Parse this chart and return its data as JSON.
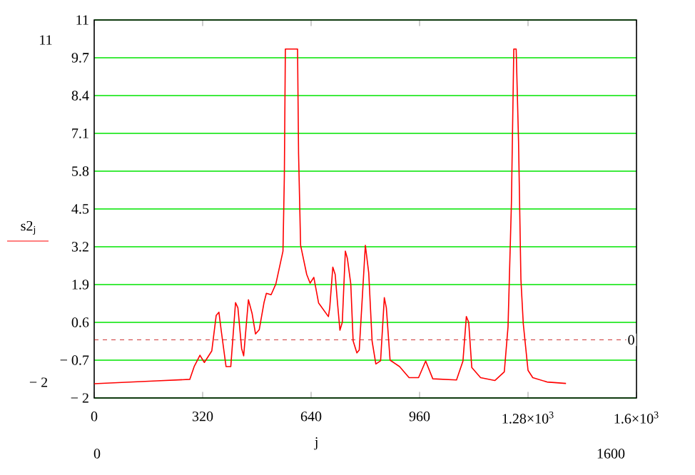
{
  "chart_data": {
    "type": "line",
    "xlabel": "j",
    "ylabel": "s2$_{j}$",
    "color": "#ff0000",
    "marker": "none",
    "line_style": "solid",
    "grid": "y",
    "xlim": [
      0,
      1600
    ],
    "ylim": [
      -2,
      11
    ],
    "xticks": [
      0,
      320,
      640,
      960,
      {
        "value": 1280,
        "label": "1.28×10$^{3}$"
      },
      {
        "value": 1600,
        "label": "1.6×10$^{3}$"
      }
    ],
    "yticks": [
      {
        "value": -2,
        "label": "− 2"
      },
      {
        "value": -0.7,
        "label": "− 0.7"
      },
      0.6,
      1.9,
      3.2,
      4.5,
      5.8,
      7.1,
      8.4,
      9.7,
      11
    ],
    "ref_lines": [
      {
        "axis": "y",
        "value": 0,
        "label": "0",
        "color": "#c00000",
        "line_style": "dashed"
      }
    ],
    "annotations": [
      "11",
      "− 2",
      "0",
      "1600"
    ],
    "x": [
      0,
      185,
      282,
      295,
      312,
      325,
      347,
      360,
      368,
      375,
      389,
      403,
      417,
      424,
      435,
      441,
      455,
      466,
      476,
      487,
      501,
      508,
      522,
      536,
      557,
      561,
      564,
      600,
      603,
      609,
      627,
      637,
      648,
      662,
      691,
      695,
      704,
      711,
      718,
      725,
      732,
      741,
      747,
      757,
      764,
      775,
      782,
      800,
      810,
      820,
      831,
      845,
      856,
      862,
      873,
      901,
      929,
      957,
      978,
      999,
      1069,
      1088,
      1098,
      1105,
      1114,
      1140,
      1182,
      1210,
      1221,
      1231,
      1238,
      1245,
      1252,
      1259,
      1266,
      1280,
      1294,
      1336,
      1392
    ],
    "values": [
      -1.51,
      -1.41,
      -1.36,
      -0.92,
      -0.53,
      -0.78,
      -0.38,
      0.84,
      0.95,
      0.3,
      -0.92,
      -0.92,
      1.28,
      1.1,
      -0.3,
      -0.55,
      1.38,
      0.9,
      0.2,
      0.35,
      1.28,
      1.6,
      1.55,
      1.92,
      3.05,
      5.6,
      10.0,
      10.0,
      6.4,
      3.25,
      2.25,
      1.95,
      2.15,
      1.27,
      0.8,
      1.1,
      2.5,
      2.25,
      1.25,
      0.33,
      0.6,
      3.05,
      2.8,
      1.93,
      -0.04,
      -0.45,
      -0.35,
      3.25,
      2.3,
      -0.05,
      -0.83,
      -0.72,
      1.45,
      1.1,
      -0.7,
      -0.92,
      -1.3,
      -1.3,
      -0.73,
      -1.34,
      -1.38,
      -0.73,
      0.8,
      0.6,
      -0.95,
      -1.3,
      -1.4,
      -1.1,
      0.45,
      4.7,
      10.0,
      10.0,
      6.83,
      2.07,
      0.55,
      -1.05,
      -1.3,
      -1.45,
      -1.5
    ]
  }
}
